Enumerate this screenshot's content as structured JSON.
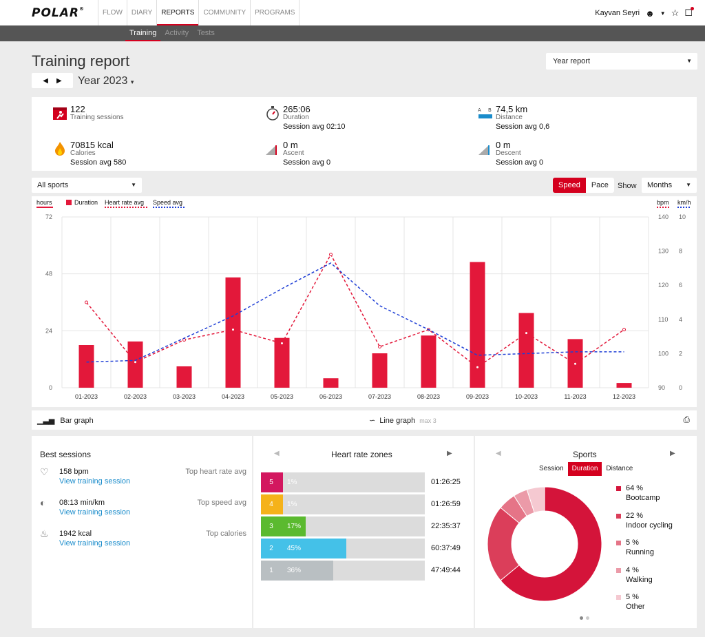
{
  "nav": {
    "logo": "POLAR",
    "items": [
      "FLOW",
      "DIARY",
      "REPORTS",
      "COMMUNITY",
      "PROGRAMS"
    ],
    "active": "REPORTS",
    "user": "Kayvan Seyri"
  },
  "subnav": {
    "items": [
      "Training",
      "Activity",
      "Tests"
    ],
    "active": "Training"
  },
  "header": {
    "title": "Training report",
    "period": "Year 2023",
    "report_type": "Year report"
  },
  "summary": {
    "sessions": {
      "value": "122",
      "label": "Training sessions"
    },
    "duration": {
      "value": "265:06",
      "label": "Duration",
      "sub": "Session avg 02:10"
    },
    "distance": {
      "value": "74,5 km",
      "label": "Distance",
      "sub": "Session avg 0,6"
    },
    "calories": {
      "value": "70815 kcal",
      "label": "Calories",
      "sub": "Session avg 580"
    },
    "ascent": {
      "value": "0 m",
      "label": "Ascent",
      "sub": "Session avg 0"
    },
    "descent": {
      "value": "0 m",
      "label": "Descent",
      "sub": "Session avg 0"
    }
  },
  "controls": {
    "sport": "All sports",
    "speed_label": "Speed",
    "pace_label": "Pace",
    "show_label": "Show",
    "interval": "Months"
  },
  "chart_data": {
    "type": "bar",
    "categories": [
      "01-2023",
      "02-2023",
      "03-2023",
      "04-2023",
      "05-2023",
      "06-2023",
      "07-2023",
      "08-2023",
      "09-2023",
      "10-2023",
      "11-2023",
      "12-2023"
    ],
    "series": [
      {
        "name": "Duration",
        "axis": "hours",
        "type": "bar",
        "color": "#e3183a",
        "values": [
          18,
          19.5,
          9,
          46.5,
          21,
          4,
          14.5,
          22,
          53,
          31.5,
          20.5,
          2
        ]
      },
      {
        "name": "Heart rate avg",
        "axis": "bpm",
        "type": "line",
        "color": "#e3183a",
        "dashed": true,
        "values": [
          115,
          97.5,
          104,
          107,
          103,
          129,
          102,
          107,
          96,
          106,
          97,
          107
        ]
      },
      {
        "name": "Speed avg",
        "axis": "km/h",
        "type": "line",
        "color": "#1f3fd6",
        "dashed": true,
        "values": [
          1.5,
          1.6,
          null,
          4.2,
          5.8,
          7.3,
          4.8,
          3.4,
          1.9,
          2.0,
          2.1,
          2.1
        ]
      }
    ],
    "left_axis": {
      "label": "hours",
      "ylim": [
        0,
        72
      ],
      "ticks": [
        0,
        24,
        48,
        72
      ]
    },
    "right_axis_bpm": {
      "label": "bpm",
      "ylim": [
        90,
        140
      ],
      "ticks": [
        90,
        100,
        110,
        120,
        130,
        140
      ]
    },
    "right_axis_speed": {
      "label": "km/h",
      "ylim": [
        0,
        10
      ],
      "ticks": [
        0,
        2,
        4,
        6,
        8,
        10
      ]
    },
    "legend": [
      "Duration",
      "Heart rate avg",
      "Speed avg"
    ],
    "grid": true
  },
  "graph_modes": {
    "bar": "Bar graph",
    "line": "Line graph",
    "line_max": "max 3"
  },
  "best_sessions": {
    "title": "Best sessions",
    "items": [
      {
        "icon": "heart-icon",
        "value": "158 bpm",
        "link": "View training session",
        "tag": "Top heart rate avg"
      },
      {
        "icon": "speedometer-icon",
        "value": "08:13 min/km",
        "link": "View training session",
        "tag": "Top speed avg"
      },
      {
        "icon": "flame-icon",
        "value": "1942 kcal",
        "link": "View training session",
        "tag": "Top calories"
      }
    ]
  },
  "hr_zones": {
    "title": "Heart rate zones",
    "zones": [
      {
        "zone": "5",
        "pct": "1%",
        "fraction": 0.01,
        "time": "01:26:25",
        "color": "#d3175f"
      },
      {
        "zone": "4",
        "pct": "1%",
        "fraction": 0.01,
        "time": "01:26:59",
        "color": "#f5b21a"
      },
      {
        "zone": "3",
        "pct": "17%",
        "fraction": 0.17,
        "time": "22:35:37",
        "color": "#5bba2f"
      },
      {
        "zone": "2",
        "pct": "45%",
        "fraction": 0.45,
        "time": "60:37:49",
        "color": "#44c1e8"
      },
      {
        "zone": "1",
        "pct": "36%",
        "fraction": 0.36,
        "time": "47:49:44",
        "color": "#b9bfc2"
      }
    ]
  },
  "sports": {
    "title": "Sports",
    "tabs": [
      "Session",
      "Duration",
      "Distance"
    ],
    "active_tab": "Duration",
    "items": [
      {
        "pct": "64 %",
        "value": 64,
        "name": "Bootcamp",
        "color": "#d4143a"
      },
      {
        "pct": "22 %",
        "value": 22,
        "name": "Indoor cycling",
        "color": "#db3e5a"
      },
      {
        "pct": "5 %",
        "value": 5,
        "name": "Running",
        "color": "#e57487"
      },
      {
        "pct": "4 %",
        "value": 4,
        "name": "Walking",
        "color": "#eb9aa8"
      },
      {
        "pct": "5 %",
        "value": 5,
        "name": "Other",
        "color": "#f5c9d1"
      }
    ]
  }
}
